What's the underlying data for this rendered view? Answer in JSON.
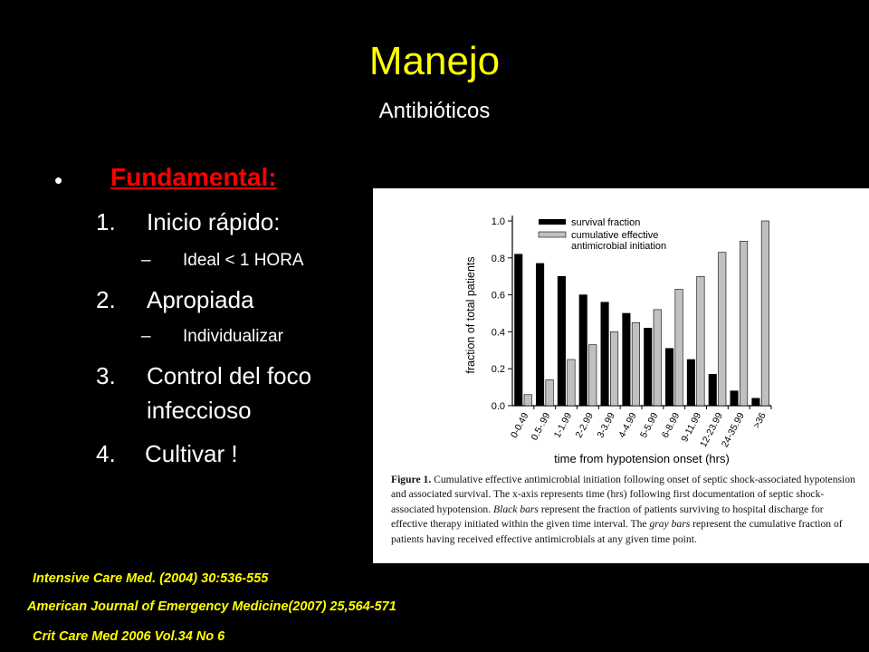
{
  "slide": {
    "title": "Manejo",
    "subtitle": "Antibióticos",
    "bullet_symbol": "•",
    "heading": "Fundamental:",
    "items": [
      {
        "num": "1.",
        "text": "Inicio rápido:"
      },
      {
        "num": "2.",
        "text": "Apropiada"
      },
      {
        "num": "3.",
        "text": "Control del foco"
      },
      {
        "num": "",
        "text": "infeccioso"
      },
      {
        "num": "4.",
        "text": "Cultivar !"
      }
    ],
    "subitems": [
      {
        "dash": "–",
        "text": "Ideal < 1 HORA"
      },
      {
        "dash": "–",
        "text": "Individualizar"
      }
    ],
    "references": [
      "Intensive Care Med. (2004) 30:536-555",
      "American Journal of Emergency Medicine(2007) 25,564-571",
      "Crit Care Med 2006 Vol.34 No 6"
    ],
    "colors": {
      "background": "#000000",
      "title": "#FFFF00",
      "heading": "#FF0000",
      "text": "#FFFFFF",
      "references": "#FFFF00"
    }
  },
  "figure": {
    "caption_label": "Figure 1.",
    "caption_parts": [
      {
        "text": "Cumulative effective antimicrobial initiation following onset of septic shock-associated hypotension and associated survival. The x-axis represents time (hrs) following first documentation of septic shock-associated hypotension. ",
        "italic": false
      },
      {
        "text": "Black bars",
        "italic": true
      },
      {
        "text": " represent the fraction of patients surviving to hospital discharge for effective therapy initiated within the given time interval. The ",
        "italic": false
      },
      {
        "text": "gray bars",
        "italic": true
      },
      {
        "text": " represent the cumulative fraction of patients having received effective antimicrobials at any given time point.",
        "italic": false
      }
    ]
  },
  "chart_data": {
    "type": "bar",
    "title": "",
    "xlabel": "time from hypotension onset (hrs)",
    "ylabel": "fraction of total patients",
    "ylim": [
      0,
      1.0
    ],
    "yticks": [
      "0.0",
      "0.2",
      "0.4",
      "0.6",
      "0.8",
      "1.0"
    ],
    "categories": [
      "0-0.49",
      "0.5-.99",
      "1-1.99",
      "2-2.99",
      "3-3.99",
      "4-4.99",
      "5-5.99",
      "6-8.99",
      "9-11.99",
      "12-23.99",
      "24-35.99",
      ">36"
    ],
    "series": [
      {
        "name": "survival fraction",
        "color": "#000000",
        "values": [
          0.82,
          0.77,
          0.7,
          0.6,
          0.56,
          0.5,
          0.42,
          0.31,
          0.25,
          0.17,
          0.08,
          0.04
        ]
      },
      {
        "name": "cumulative effective antimicrobial initiation",
        "legend_lines": [
          "cumulative effective",
          "antimicrobial initiation"
        ],
        "color": "#C0C0C0",
        "values": [
          0.06,
          0.14,
          0.25,
          0.33,
          0.4,
          0.45,
          0.52,
          0.63,
          0.7,
          0.83,
          0.89,
          1.0
        ]
      }
    ],
    "legend_position": "top-left",
    "grid": false
  }
}
